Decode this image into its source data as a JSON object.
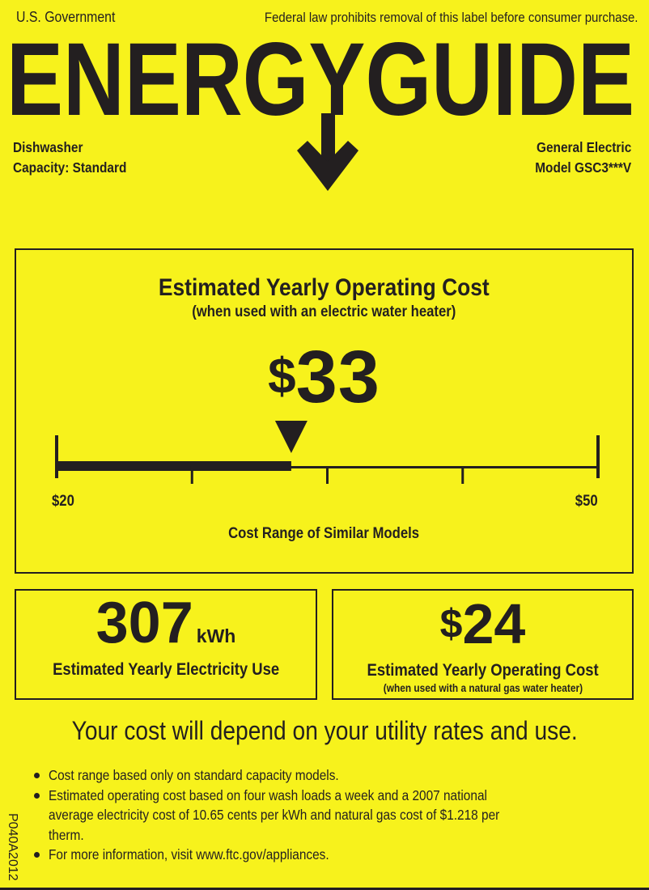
{
  "header": {
    "issuer": "U.S. Government",
    "notice": "Federal law prohibits removal of this label before consumer purchase.",
    "logo_text": "ENERGYGUIDE"
  },
  "product": {
    "type": "Dishwasher",
    "capacity": "Capacity: Standard",
    "manufacturer": "General Electric",
    "model": "Model GSC3***V"
  },
  "main_cost": {
    "title": "Estimated Yearly Operating Cost",
    "subtitle": "(when used with an electric water heater)",
    "dollar_sign": "$",
    "value": "33",
    "range_min_label": "$20",
    "range_max_label": "$50",
    "range_min": 20,
    "range_max": 50,
    "current": 33,
    "range_caption": "Cost Range of Similar Models"
  },
  "electricity": {
    "value": "307",
    "unit": "kWh",
    "label": "Estimated Yearly Electricity Use"
  },
  "gas_cost": {
    "dollar_sign": "$",
    "value": "24",
    "label": "Estimated Yearly Operating Cost",
    "sublabel": "(when used with a natural gas water heater)"
  },
  "disclaimer": "Your cost will depend on your utility rates and use.",
  "notes": [
    "Cost range based only on standard capacity models.",
    "Estimated operating cost based on four wash loads a week and a 2007 national average electricity cost of 10.65 cents per kWh and natural gas cost of $1.218 per therm.",
    "For more information, visit www.ftc.gov/appliances."
  ],
  "label_code": "P040A2012",
  "colors": {
    "background": "#f7f21c",
    "ink": "#231f20"
  }
}
